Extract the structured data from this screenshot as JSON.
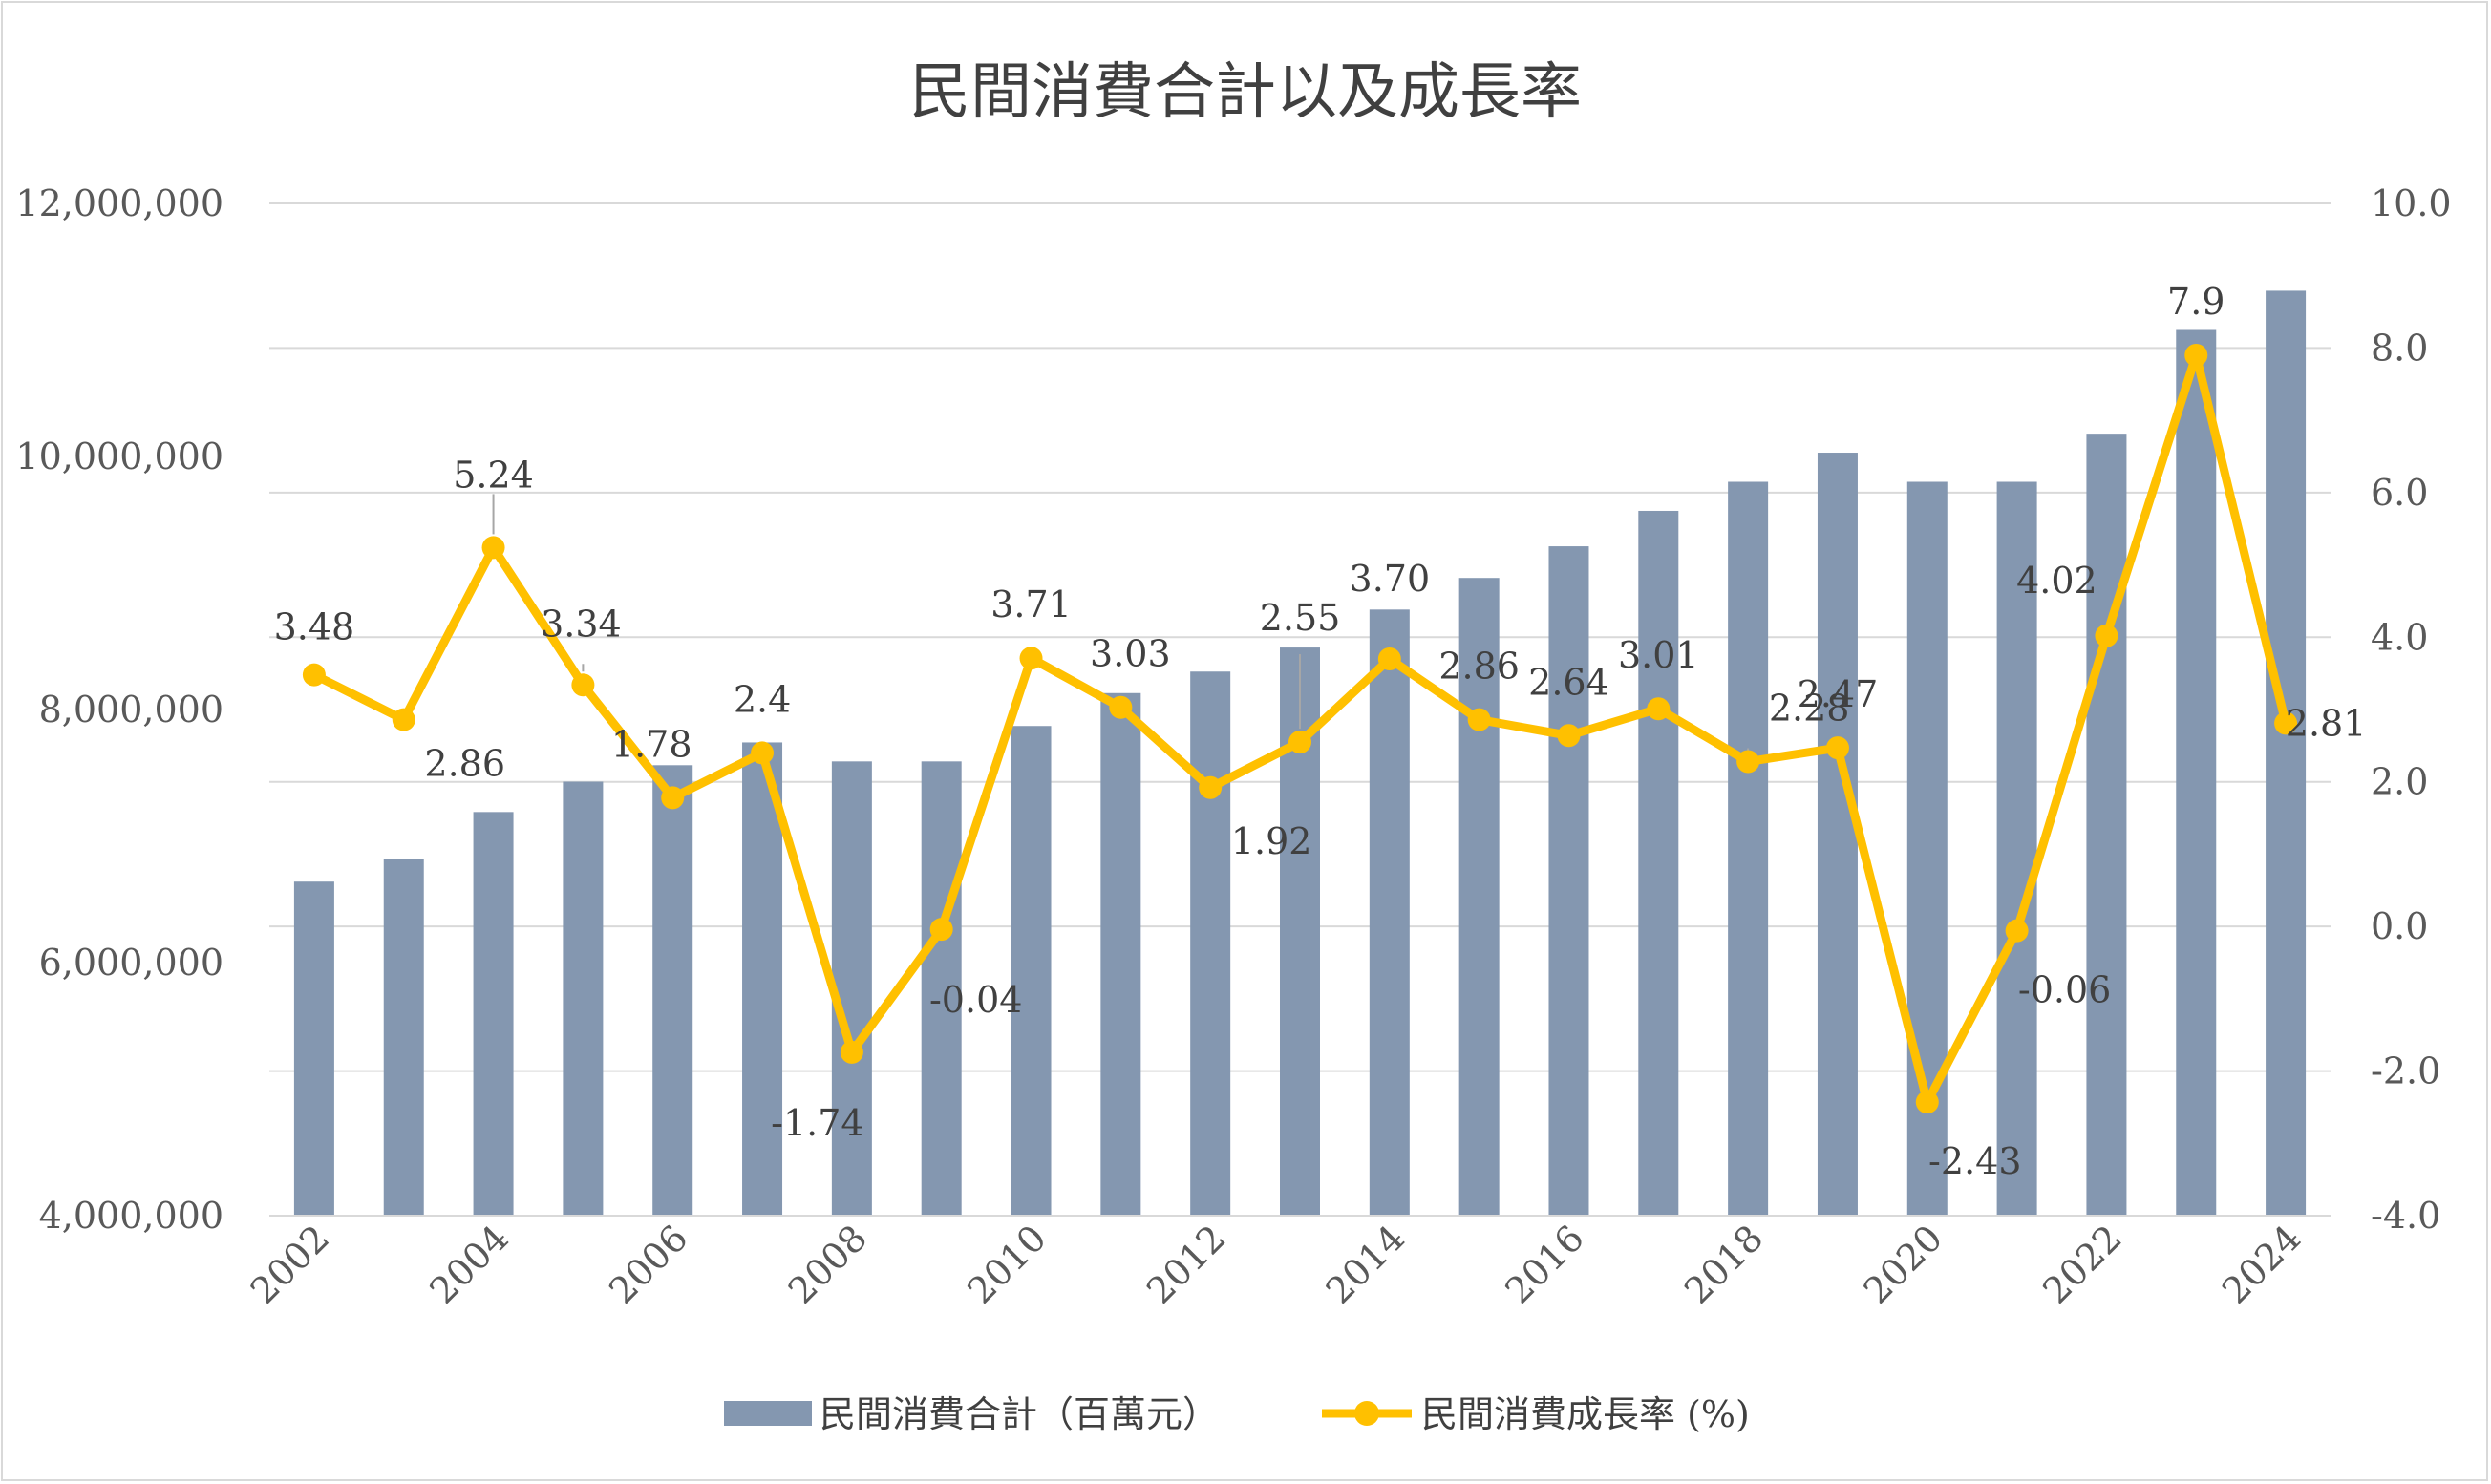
{
  "chart_data": {
    "type": "bar",
    "title": "民間消費合計以及成長率",
    "x": [
      2002,
      2003,
      2004,
      2005,
      2006,
      2007,
      2008,
      2009,
      2010,
      2011,
      2012,
      2013,
      2014,
      2015,
      2016,
      2017,
      2018,
      2019,
      2020,
      2021,
      2022,
      2023,
      2024
    ],
    "x_tick_labels": [
      "2002",
      "2004",
      "2006",
      "2008",
      "2010",
      "2012",
      "2014",
      "2016",
      "2018",
      "2020",
      "2022",
      "2024"
    ],
    "y_left": {
      "min": 4000000,
      "max": 12000000,
      "tick_labels": [
        "4,000,000",
        "6,000,000",
        "8,000,000",
        "10,000,000",
        "12,000,000"
      ],
      "tick_values": [
        4000000,
        6000000,
        8000000,
        10000000,
        12000000
      ]
    },
    "y_right": {
      "min": -4.0,
      "max": 10.0,
      "tick_labels": [
        "-4.0",
        "-2.0",
        "0.0",
        "2.0",
        "4.0",
        "6.0",
        "8.0",
        "10.0"
      ],
      "tick_values": [
        -4,
        -2,
        0,
        2,
        4,
        6,
        8,
        10
      ]
    },
    "grid": true,
    "legend_position": "bottom",
    "series": [
      {
        "name": "民間消費合計（百萬元）",
        "type": "bar",
        "axis": "left",
        "color": "#8497b0",
        "values": [
          6640000,
          6820000,
          7190000,
          7430000,
          7560000,
          7740000,
          7590000,
          7590000,
          7870000,
          8130000,
          8300000,
          8490000,
          8790000,
          9040000,
          9290000,
          9570000,
          9800000,
          10030000,
          9800000,
          9800000,
          10180000,
          11000000,
          11310000
        ]
      },
      {
        "name": "民間消費成長率 (%)",
        "type": "line",
        "axis": "right",
        "color": "#ffc000",
        "values": [
          3.48,
          2.86,
          5.24,
          3.34,
          1.78,
          2.4,
          -1.74,
          -0.04,
          3.71,
          3.03,
          1.92,
          2.55,
          3.7,
          2.86,
          2.64,
          3.01,
          2.28,
          2.47,
          -2.43,
          -0.06,
          4.02,
          7.9,
          2.81
        ],
        "data_labels": [
          "3.48",
          "2.86",
          "5.24",
          "3.34",
          "1.78",
          "2.4",
          "-1.74",
          "-0.04",
          "3.71",
          "3.03",
          "1.92",
          "2.55",
          "3.70",
          "2.86",
          "2.64",
          "3.01",
          "2.28",
          "2.47",
          "-2.43",
          "-0.06",
          "4.02",
          "7.9",
          "2.81"
        ]
      }
    ]
  }
}
